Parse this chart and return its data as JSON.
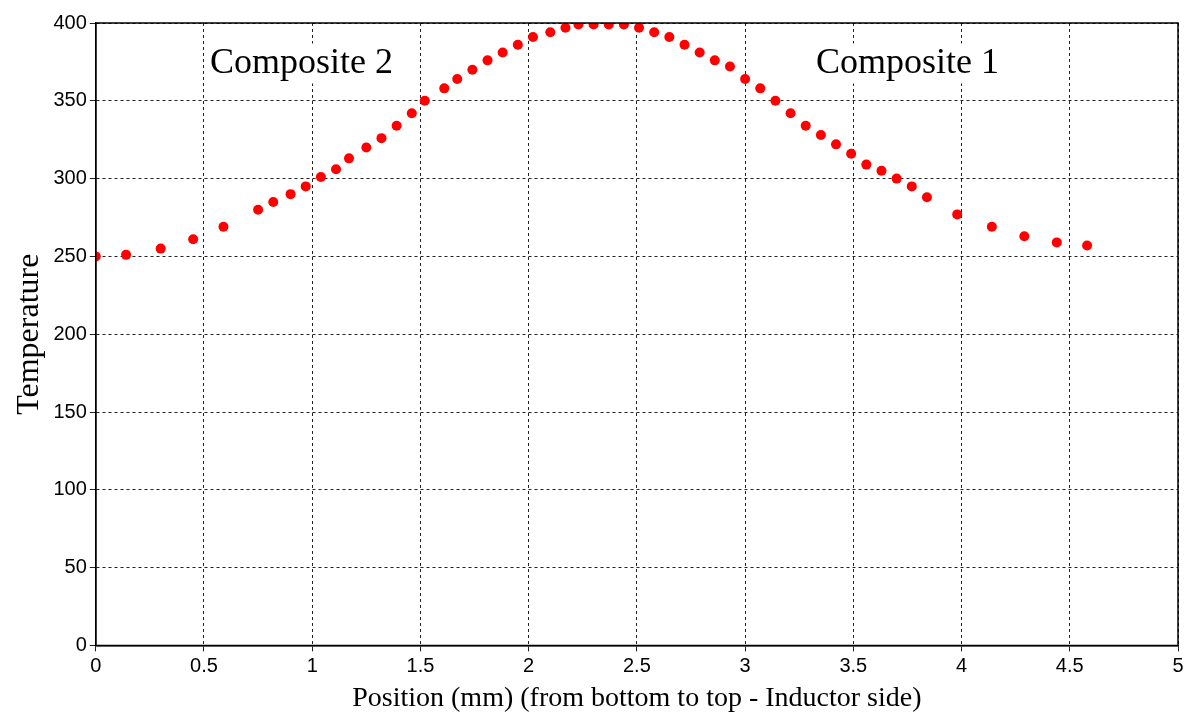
{
  "chart_data": {
    "type": "scatter",
    "xlabel": "Position (mm) (from bottom to top - Inductor side)",
    "ylabel": "Temperature",
    "annotations": [
      "Composite 2",
      "Composite 1"
    ],
    "series": [
      {
        "color": "#ff0000",
        "x": [
          0,
          0.14,
          0.3,
          0.45,
          0.59,
          0.75,
          0.82,
          0.9,
          0.97,
          1.04,
          1.11,
          1.17,
          1.25,
          1.32,
          1.39,
          1.46,
          1.52,
          1.61,
          1.67,
          1.74,
          1.81,
          1.88,
          1.95,
          2.02,
          2.1,
          2.17,
          2.23,
          2.3,
          2.37,
          2.44,
          2.51,
          2.58,
          2.65,
          2.72,
          2.79,
          2.86,
          2.93,
          3.0,
          3.07,
          3.14,
          3.21,
          3.28,
          3.35,
          3.42,
          3.49,
          3.56,
          3.63,
          3.7,
          3.77,
          3.84,
          3.98,
          4.14,
          4.29,
          4.44,
          4.58
        ],
        "values": [
          250,
          251,
          255,
          261,
          269,
          280,
          285,
          290,
          295,
          301,
          306,
          313,
          320,
          326,
          334,
          342,
          350,
          358,
          364,
          370,
          376,
          381,
          386,
          391,
          394,
          397,
          399,
          399,
          399,
          399,
          397,
          394,
          391,
          386,
          381,
          376,
          372,
          364,
          358,
          350,
          342,
          334,
          328,
          322,
          316,
          309,
          305,
          300,
          295,
          288,
          277,
          269,
          263,
          259,
          257
        ]
      }
    ],
    "xlim": [
      0,
      5
    ],
    "xticks": [
      0,
      0.5,
      1,
      1.5,
      2,
      2.5,
      3,
      3.5,
      4,
      4.5,
      5
    ],
    "ylim": [
      0,
      400
    ],
    "yticks": [
      0,
      50,
      100,
      150,
      200,
      250,
      300,
      350,
      400
    ],
    "grid": true,
    "marker": "circle",
    "legend": false
  }
}
